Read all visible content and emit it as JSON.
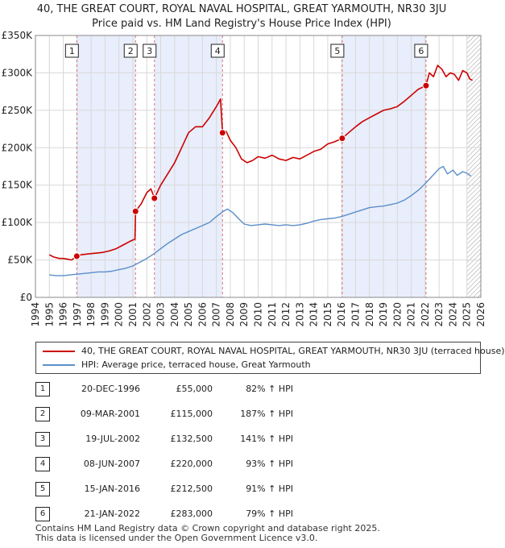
{
  "chart_data": {
    "type": "line",
    "title": "40, THE GREAT COURT, ROYAL NAVAL HOSPITAL, GREAT YARMOUTH, NR30 3JU",
    "subtitle": "Price paid vs. HM Land Registry's House Price Index (HPI)",
    "xlim": [
      1994,
      2026
    ],
    "ylim": [
      0,
      350000
    ],
    "y_ticks": [
      0,
      50000,
      100000,
      150000,
      200000,
      250000,
      300000,
      350000
    ],
    "y_tick_labels": [
      "£0",
      "£50K",
      "£100K",
      "£150K",
      "£200K",
      "£250K",
      "£300K",
      "£350K"
    ],
    "x_ticks": [
      "1994",
      "1995",
      "1996",
      "1997",
      "1998",
      "1999",
      "2000",
      "2001",
      "2002",
      "2003",
      "2004",
      "2005",
      "2006",
      "2007",
      "2008",
      "2009",
      "2010",
      "2011",
      "2012",
      "2013",
      "2014",
      "2015",
      "2016",
      "2017",
      "2018",
      "2019",
      "2020",
      "2021",
      "2022",
      "2023",
      "2024",
      "2025",
      "2026"
    ],
    "grid": true,
    "shaded_spans": [
      [
        1996.97,
        2001.19
      ],
      [
        2002.55,
        2007.44
      ],
      [
        2016.04,
        2022.06
      ]
    ],
    "hatched_span": [
      2025.0,
      2026.0
    ],
    "series": [
      {
        "name": "40, THE GREAT COURT, ROYAL NAVAL HOSPITAL, GREAT YARMOUTH, NR30 3JU (terraced house)",
        "color": "#cc0000",
        "x": [
          1995.0,
          1995.3,
          1995.7,
          1996.0,
          1996.3,
          1996.6,
          1996.97,
          1997.3,
          1997.8,
          1998.3,
          1998.8,
          1999.3,
          1999.8,
          2000.3,
          2000.8,
          2001.15,
          2001.19,
          2001.6,
          2002.0,
          2002.3,
          2002.55,
          2003.0,
          2003.5,
          2004.0,
          2004.5,
          2005.0,
          2005.5,
          2006.0,
          2006.5,
          2007.0,
          2007.3,
          2007.44,
          2007.7,
          2008.0,
          2008.4,
          2008.8,
          2009.2,
          2009.6,
          2010.0,
          2010.5,
          2011.0,
          2011.5,
          2012.0,
          2012.5,
          2013.0,
          2013.5,
          2014.0,
          2014.5,
          2015.0,
          2015.5,
          2016.04,
          2016.5,
          2017.0,
          2017.5,
          2018.0,
          2018.5,
          2019.0,
          2019.5,
          2020.0,
          2020.5,
          2021.0,
          2021.5,
          2022.06,
          2022.3,
          2022.6,
          2022.9,
          2023.2,
          2023.5,
          2023.8,
          2024.1,
          2024.4,
          2024.7,
          2025.0,
          2025.2,
          2025.4
        ],
        "values": [
          57000,
          54000,
          52000,
          52000,
          51000,
          50000,
          55000,
          57000,
          58000,
          59000,
          60000,
          62000,
          65000,
          70000,
          75000,
          78000,
          115000,
          125000,
          140000,
          145000,
          132500,
          150000,
          165000,
          180000,
          200000,
          220000,
          228000,
          228000,
          240000,
          255000,
          265000,
          220000,
          222000,
          210000,
          200000,
          185000,
          180000,
          183000,
          188000,
          186000,
          190000,
          185000,
          183000,
          187000,
          185000,
          190000,
          195000,
          198000,
          205000,
          208000,
          212500,
          220000,
          228000,
          235000,
          240000,
          245000,
          250000,
          252000,
          255000,
          262000,
          270000,
          278000,
          283000,
          300000,
          295000,
          310000,
          305000,
          295000,
          300000,
          298000,
          290000,
          303000,
          300000,
          292000,
          290000
        ]
      },
      {
        "name": "HPI: Average price, terraced house, Great Yarmouth",
        "color": "#5b8ec9",
        "x": [
          1995.0,
          1995.5,
          1996.0,
          1996.5,
          1997.0,
          1997.5,
          1998.0,
          1998.5,
          1999.0,
          1999.5,
          2000.0,
          2000.5,
          2001.0,
          2001.5,
          2002.0,
          2002.5,
          2003.0,
          2003.5,
          2004.0,
          2004.5,
          2005.0,
          2005.5,
          2006.0,
          2006.5,
          2007.0,
          2007.5,
          2007.8,
          2008.2,
          2008.6,
          2009.0,
          2009.5,
          2010.0,
          2010.5,
          2011.0,
          2011.5,
          2012.0,
          2012.5,
          2013.0,
          2013.5,
          2014.0,
          2014.5,
          2015.0,
          2015.5,
          2016.0,
          2016.5,
          2017.0,
          2017.5,
          2018.0,
          2018.5,
          2019.0,
          2019.5,
          2020.0,
          2020.5,
          2021.0,
          2021.5,
          2022.0,
          2022.5,
          2023.0,
          2023.3,
          2023.6,
          2024.0,
          2024.3,
          2024.7,
          2025.0,
          2025.3
        ],
        "values": [
          30000,
          29000,
          29000,
          30000,
          31000,
          32000,
          33000,
          34000,
          34000,
          35000,
          37000,
          39000,
          42000,
          47000,
          52000,
          58000,
          65000,
          72000,
          78000,
          84000,
          88000,
          92000,
          96000,
          100000,
          108000,
          115000,
          118000,
          113000,
          105000,
          98000,
          96000,
          97000,
          98000,
          97000,
          96000,
          97000,
          96000,
          97000,
          99000,
          102000,
          104000,
          105000,
          106000,
          108000,
          111000,
          114000,
          117000,
          120000,
          121000,
          122000,
          124000,
          126000,
          130000,
          136000,
          143000,
          152000,
          162000,
          172000,
          175000,
          165000,
          170000,
          163000,
          168000,
          166000,
          162000
        ]
      }
    ],
    "markers": [
      {
        "label": "1",
        "x": 1996.97,
        "value": 55000
      },
      {
        "label": "2",
        "x": 2001.19,
        "value": 115000
      },
      {
        "label": "3",
        "x": 2002.55,
        "value": 132500
      },
      {
        "label": "4",
        "x": 2007.44,
        "value": 220000
      },
      {
        "label": "5",
        "x": 2016.04,
        "value": 212500
      },
      {
        "label": "6",
        "x": 2022.06,
        "value": 283000
      }
    ]
  },
  "page": {
    "title_line1": "40, THE GREAT COURT, ROYAL NAVAL HOSPITAL, GREAT YARMOUTH, NR30 3JU",
    "title_line2": "Price paid vs. HM Land Registry's House Price Index (HPI)"
  },
  "legend": {
    "property_label": "40, THE GREAT COURT, ROYAL NAVAL HOSPITAL, GREAT YARMOUTH, NR30 3JU (terraced house)",
    "hpi_label": "HPI: Average price, terraced house, Great Yarmouth",
    "property_color": "#cc0000",
    "hpi_color": "#5b8ec9"
  },
  "transactions": [
    {
      "num": "1",
      "date": "20-DEC-1996",
      "price": "£55,000",
      "hpi": "82% ↑ HPI"
    },
    {
      "num": "2",
      "date": "09-MAR-2001",
      "price": "£115,000",
      "hpi": "187% ↑ HPI"
    },
    {
      "num": "3",
      "date": "19-JUL-2002",
      "price": "£132,500",
      "hpi": "141% ↑ HPI"
    },
    {
      "num": "4",
      "date": "08-JUN-2007",
      "price": "£220,000",
      "hpi": "93% ↑ HPI"
    },
    {
      "num": "5",
      "date": "15-JAN-2016",
      "price": "£212,500",
      "hpi": "91% ↑ HPI"
    },
    {
      "num": "6",
      "date": "21-JAN-2022",
      "price": "£283,000",
      "hpi": "79% ↑ HPI"
    }
  ],
  "footer": {
    "line1": "Contains HM Land Registry data © Crown copyright and database right 2025.",
    "line2": "This data is licensed under the Open Government Licence v3.0."
  }
}
